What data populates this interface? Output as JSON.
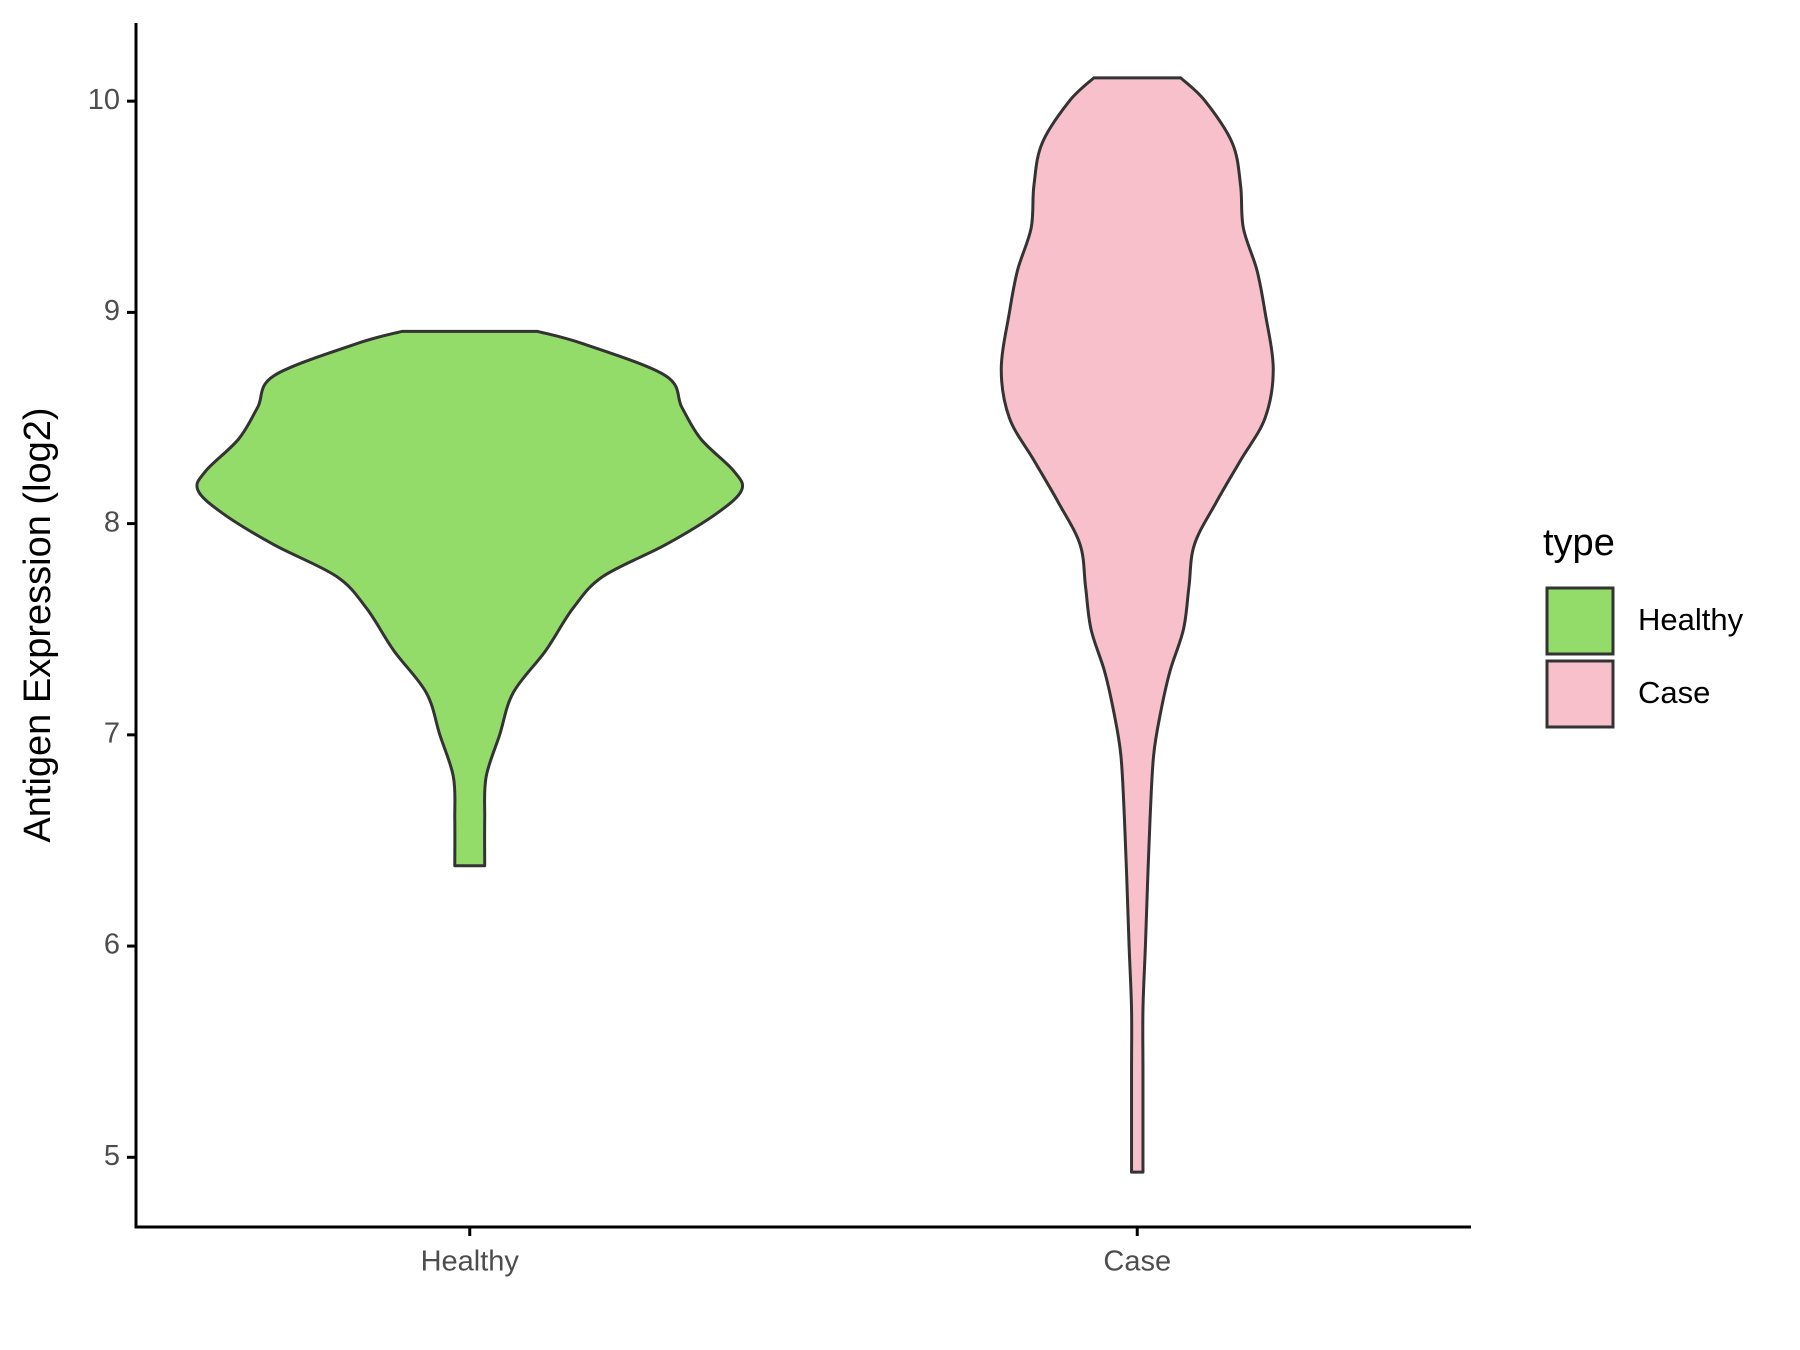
{
  "chart_data": {
    "type": "violin",
    "y_label": "Antigen Expression (log2)",
    "categories": [
      "Healthy",
      "Case"
    ],
    "legend_title": "type",
    "legend_position": "right",
    "ylim": [
      4.67,
      10.37
    ],
    "yticks": [
      5,
      6,
      7,
      8,
      9,
      10
    ],
    "series": [
      {
        "name": "Healthy",
        "color": "#93dc6a",
        "y": [
          8.91,
          8.85,
          8.7,
          8.55,
          8.4,
          8.25,
          8.16,
          8.05,
          7.9,
          7.75,
          7.6,
          7.4,
          7.2,
          7.0,
          6.8,
          6.6,
          6.38
        ],
        "width": [
          0.25,
          0.42,
          0.72,
          0.78,
          0.85,
          0.97,
          1.0,
          0.91,
          0.72,
          0.49,
          0.38,
          0.28,
          0.16,
          0.11,
          0.06,
          0.055,
          0.055
        ]
      },
      {
        "name": "Case",
        "color": "#f7c0cb",
        "y": [
          10.11,
          10.0,
          9.8,
          9.6,
          9.4,
          9.2,
          9.0,
          8.73,
          8.5,
          8.3,
          8.1,
          7.9,
          7.7,
          7.5,
          7.3,
          7.1,
          6.9,
          6.6,
          6.3,
          6.0,
          5.7,
          5.4,
          4.93
        ],
        "width": [
          0.16,
          0.25,
          0.35,
          0.38,
          0.39,
          0.44,
          0.47,
          0.5,
          0.47,
          0.38,
          0.29,
          0.21,
          0.19,
          0.17,
          0.12,
          0.085,
          0.06,
          0.047,
          0.038,
          0.03,
          0.021,
          0.021,
          0.021
        ]
      }
    ]
  }
}
